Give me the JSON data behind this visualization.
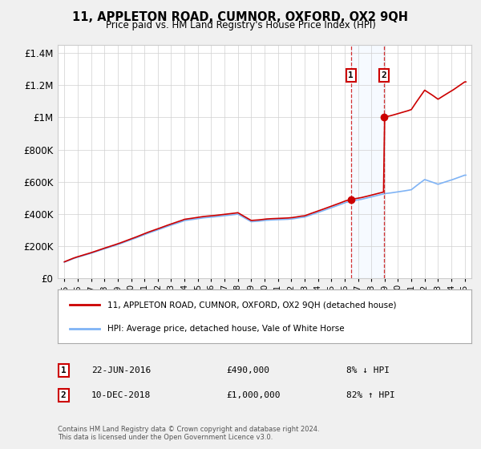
{
  "title": "11, APPLETON ROAD, CUMNOR, OXFORD, OX2 9QH",
  "subtitle": "Price paid vs. HM Land Registry's House Price Index (HPI)",
  "legend_line1": "11, APPLETON ROAD, CUMNOR, OXFORD, OX2 9QH (detached house)",
  "legend_line2": "HPI: Average price, detached house, Vale of White Horse",
  "footnote1": "Contains HM Land Registry data © Crown copyright and database right 2024.",
  "footnote2": "This data is licensed under the Open Government Licence v3.0.",
  "sale1_date": "22-JUN-2016",
  "sale1_price": "£490,000",
  "sale1_hpi": "8% ↓ HPI",
  "sale2_date": "10-DEC-2018",
  "sale2_price": "£1,000,000",
  "sale2_hpi": "82% ↑ HPI",
  "hpi_color": "#7fb3f5",
  "price_color": "#cc0000",
  "highlight_color": "#ddeeff",
  "sale1_x": 2016.47,
  "sale1_y": 490000,
  "sale2_x": 2018.94,
  "sale2_y": 1000000,
  "ylim_max": 1450000,
  "ylim_min": 0,
  "xlim_min": 1994.5,
  "xlim_max": 2025.5,
  "background_color": "#f0f0f0",
  "plot_bg_color": "#ffffff",
  "yticks": [
    0,
    200000,
    400000,
    600000,
    800000,
    1000000,
    1200000,
    1400000
  ],
  "xticks": [
    1995,
    1996,
    1997,
    1998,
    1999,
    2000,
    2001,
    2002,
    2003,
    2004,
    2005,
    2006,
    2007,
    2008,
    2009,
    2010,
    2011,
    2012,
    2013,
    2014,
    2015,
    2016,
    2017,
    2018,
    2019,
    2020,
    2021,
    2022,
    2023,
    2024,
    2025
  ]
}
